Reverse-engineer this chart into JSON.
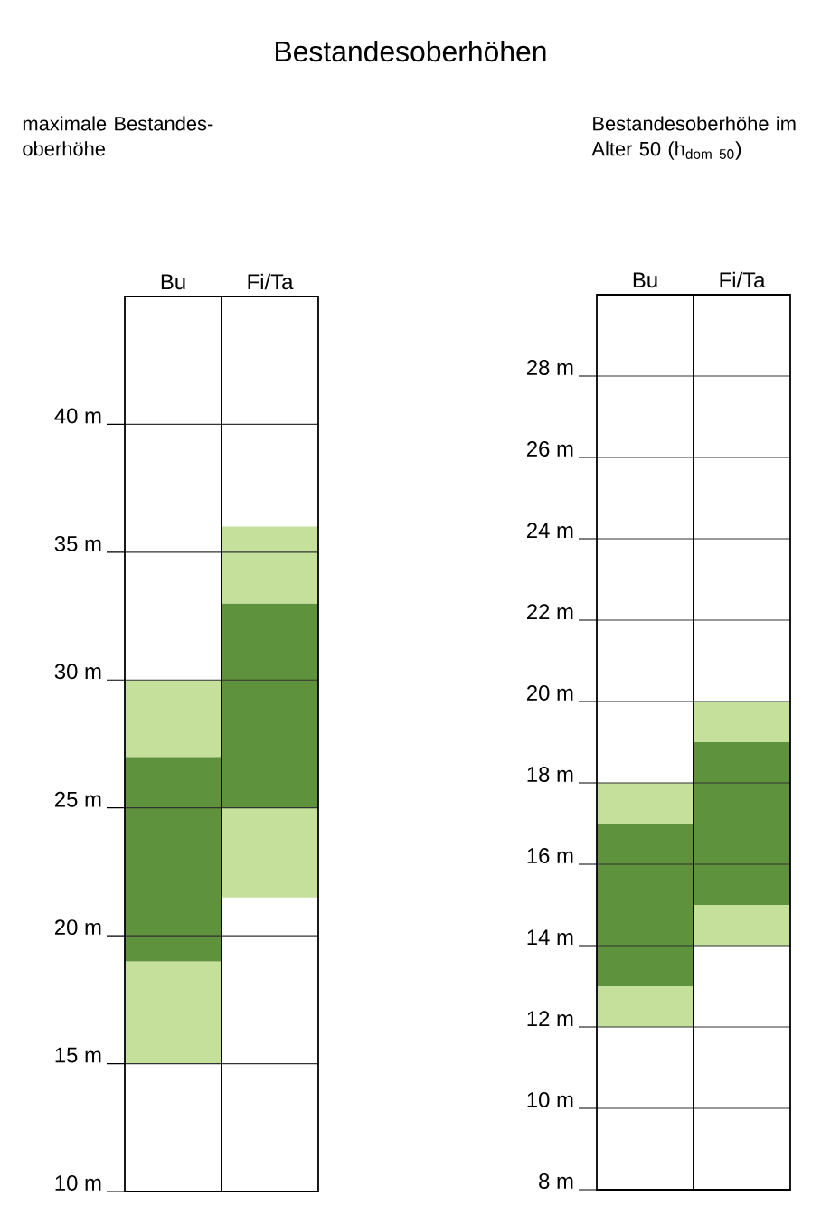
{
  "chart_data": [
    {
      "type": "bar",
      "title": "Bestandesoberhöhen",
      "subtitle": "maximale Bestandes-oberhöhe",
      "categories": [
        "Bu",
        "Fi/Ta"
      ],
      "series": [
        {
          "color": "#c5e09b",
          "base": [
            15,
            21.5
          ],
          "values": [
            4,
            3.5
          ]
        },
        {
          "color": "#5f923d",
          "base": [
            19,
            25
          ],
          "values": [
            8,
            8
          ]
        },
        {
          "color": "#c5e09b",
          "base": [
            27,
            33
          ],
          "values": [
            3,
            3
          ]
        }
      ],
      "ylim": [
        10,
        45
      ],
      "yticks": [
        {
          "value": 10,
          "label": "10 m"
        },
        {
          "value": 15,
          "label": "15 m"
        },
        {
          "value": 20,
          "label": "20 m"
        },
        {
          "value": 25,
          "label": "25 m"
        },
        {
          "value": 30,
          "label": "30 m"
        },
        {
          "value": 35,
          "label": "35 m"
        },
        {
          "value": 40,
          "label": "40 m"
        }
      ],
      "grid": "y"
    },
    {
      "type": "bar",
      "subtitle": "Bestandesoberhöhe im Alter 50 (h$_{dom 50}$)",
      "categories": [
        "Bu",
        "Fi/Ta"
      ],
      "series": [
        {
          "color": "#c5e09b",
          "base": [
            12,
            14
          ],
          "values": [
            1,
            1
          ]
        },
        {
          "color": "#5f923d",
          "base": [
            13,
            15
          ],
          "values": [
            4,
            4
          ]
        },
        {
          "color": "#c5e09b",
          "base": [
            17,
            19
          ],
          "values": [
            1,
            1
          ]
        }
      ],
      "ylim": [
        8,
        30
      ],
      "yticks": [
        {
          "value": 8,
          "label": "8 m"
        },
        {
          "value": 10,
          "label": "10 m"
        },
        {
          "value": 12,
          "label": "12 m"
        },
        {
          "value": 14,
          "label": "14 m"
        },
        {
          "value": 16,
          "label": "16 m"
        },
        {
          "value": 18,
          "label": "18 m"
        },
        {
          "value": 20,
          "label": "20 m"
        },
        {
          "value": 22,
          "label": "22 m"
        },
        {
          "value": 24,
          "label": "24 m"
        },
        {
          "value": 26,
          "label": "26 m"
        },
        {
          "value": 28,
          "label": "28 m"
        }
      ],
      "grid": "y"
    }
  ]
}
